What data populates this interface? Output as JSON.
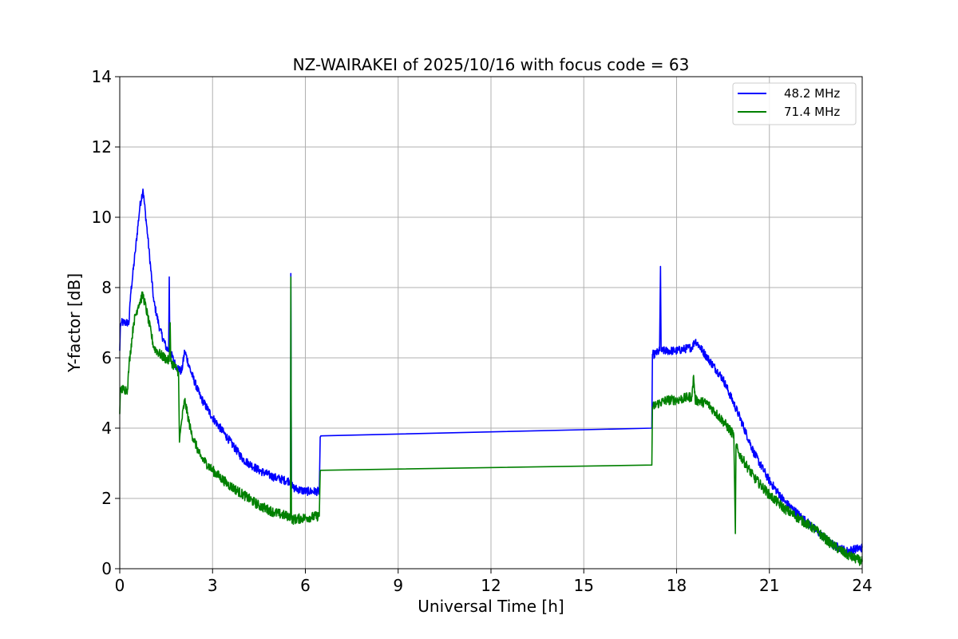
{
  "chart_data": {
    "type": "line",
    "title": "NZ-WAIRAKEI of 2025/10/16 with focus code = 63",
    "xlabel": "Universal Time [h]",
    "ylabel": "Y-factor [dB]",
    "xlim": [
      0,
      24
    ],
    "ylim": [
      0,
      14
    ],
    "xticks": [
      0,
      3,
      6,
      9,
      12,
      15,
      18,
      21,
      24
    ],
    "yticks": [
      0,
      2,
      4,
      6,
      8,
      10,
      12,
      14
    ],
    "xtick_labels": [
      "0",
      "3",
      "6",
      "9",
      "12",
      "15",
      "18",
      "21",
      "24"
    ],
    "ytick_labels": [
      "0",
      "2",
      "4",
      "6",
      "8",
      "10",
      "12",
      "14"
    ],
    "grid": true,
    "legend_position": "top-right",
    "series": [
      {
        "name": "48.2 MHz",
        "color": "#0000ff",
        "noise": 0.12,
        "x": [
          0,
          0.02,
          0.05,
          0.3,
          0.35,
          0.5,
          0.65,
          0.75,
          0.9,
          1.1,
          1.3,
          1.5,
          1.58,
          1.6,
          1.62,
          1.8,
          2.0,
          2.1,
          2.3,
          2.6,
          3.0,
          3.5,
          4.0,
          4.5,
          5.0,
          5.4,
          5.52,
          5.53,
          5.55,
          5.6,
          6.0,
          6.45,
          6.48,
          6.5,
          17.2,
          17.22,
          17.3,
          17.45,
          17.48,
          17.5,
          17.7,
          18.0,
          18.5,
          18.6,
          19.0,
          19.5,
          20.0,
          20.5,
          21.0,
          21.5,
          22.0,
          22.5,
          23.0,
          23.5,
          24.0
        ],
        "y": [
          6.2,
          6.9,
          7.0,
          7.0,
          7.8,
          9.0,
          10.3,
          10.8,
          9.5,
          7.6,
          6.8,
          6.3,
          6.2,
          8.3,
          6.2,
          5.8,
          5.6,
          6.2,
          5.6,
          4.9,
          4.3,
          3.7,
          3.1,
          2.8,
          2.6,
          2.5,
          2.5,
          8.4,
          2.4,
          2.3,
          2.2,
          2.2,
          3.75,
          3.78,
          4.0,
          6.1,
          6.1,
          6.2,
          8.6,
          6.2,
          6.2,
          6.2,
          6.3,
          6.5,
          6.0,
          5.4,
          4.4,
          3.3,
          2.5,
          1.9,
          1.5,
          1.1,
          0.7,
          0.5,
          0.6
        ]
      },
      {
        "name": "71.4 MHz",
        "color": "#008000",
        "noise": 0.14,
        "x": [
          0,
          0.02,
          0.05,
          0.25,
          0.3,
          0.45,
          0.6,
          0.75,
          0.9,
          1.1,
          1.3,
          1.6,
          1.63,
          1.65,
          1.9,
          1.93,
          2.0,
          2.1,
          2.3,
          2.6,
          3.0,
          3.5,
          4.0,
          4.5,
          5.0,
          5.4,
          5.52,
          5.53,
          5.55,
          5.6,
          6.0,
          6.45,
          6.48,
          6.5,
          17.2,
          17.22,
          17.4,
          17.7,
          18.0,
          18.5,
          18.55,
          18.6,
          19.0,
          19.5,
          19.85,
          19.9,
          19.92,
          20.0,
          20.5,
          21.0,
          21.5,
          22.0,
          22.5,
          23.0,
          23.5,
          24.0
        ],
        "y": [
          4.4,
          5.1,
          5.1,
          5.1,
          5.8,
          7.0,
          7.5,
          7.8,
          7.2,
          6.3,
          6.1,
          5.9,
          7.0,
          5.9,
          5.6,
          3.6,
          4.2,
          4.8,
          3.9,
          3.2,
          2.8,
          2.4,
          2.1,
          1.8,
          1.6,
          1.5,
          1.5,
          8.3,
          1.4,
          1.4,
          1.45,
          1.5,
          2.78,
          2.8,
          2.95,
          4.6,
          4.7,
          4.8,
          4.8,
          4.9,
          5.5,
          4.8,
          4.7,
          4.2,
          3.8,
          1.0,
          3.5,
          3.3,
          2.6,
          2.1,
          1.7,
          1.4,
          1.1,
          0.7,
          0.4,
          0.2
        ]
      }
    ]
  }
}
